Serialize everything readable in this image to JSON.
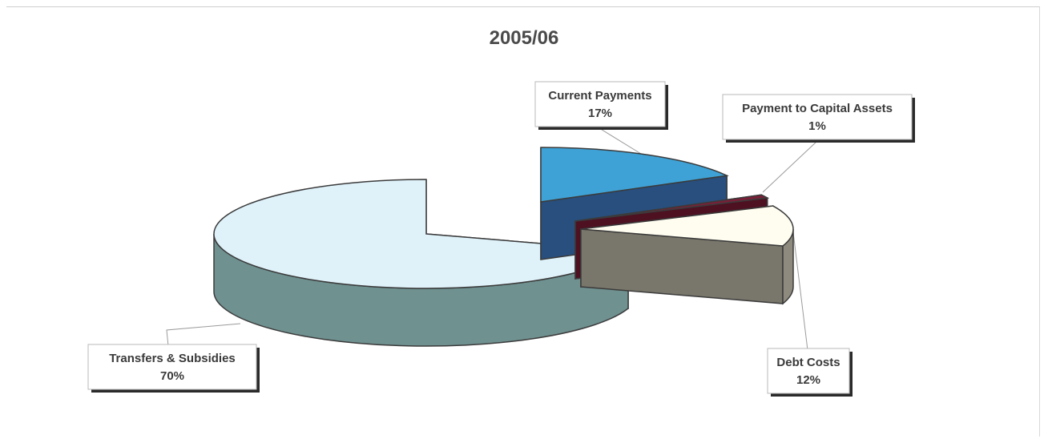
{
  "chart_data": {
    "type": "pie",
    "title": "2005/06",
    "style": "3d-exploded",
    "slices": [
      {
        "name": "Current Payments",
        "value": 17,
        "label": "17%",
        "top_color": "#3fa2d6",
        "side_color": "#2f5d94"
      },
      {
        "name": "Payment to Capital Assets",
        "value": 1,
        "label": "1%",
        "top_color": "#7a1f38",
        "side_color": "#5a1428"
      },
      {
        "name": "Debt Costs",
        "value": 12,
        "label": "12%",
        "top_color": "#fffdf0",
        "side_color": "#8e8b7e"
      },
      {
        "name": "Transfers & Subsidies",
        "value": 70,
        "label": "70%",
        "top_color": "#dff2fa",
        "side_color": "#6f9190"
      }
    ]
  }
}
